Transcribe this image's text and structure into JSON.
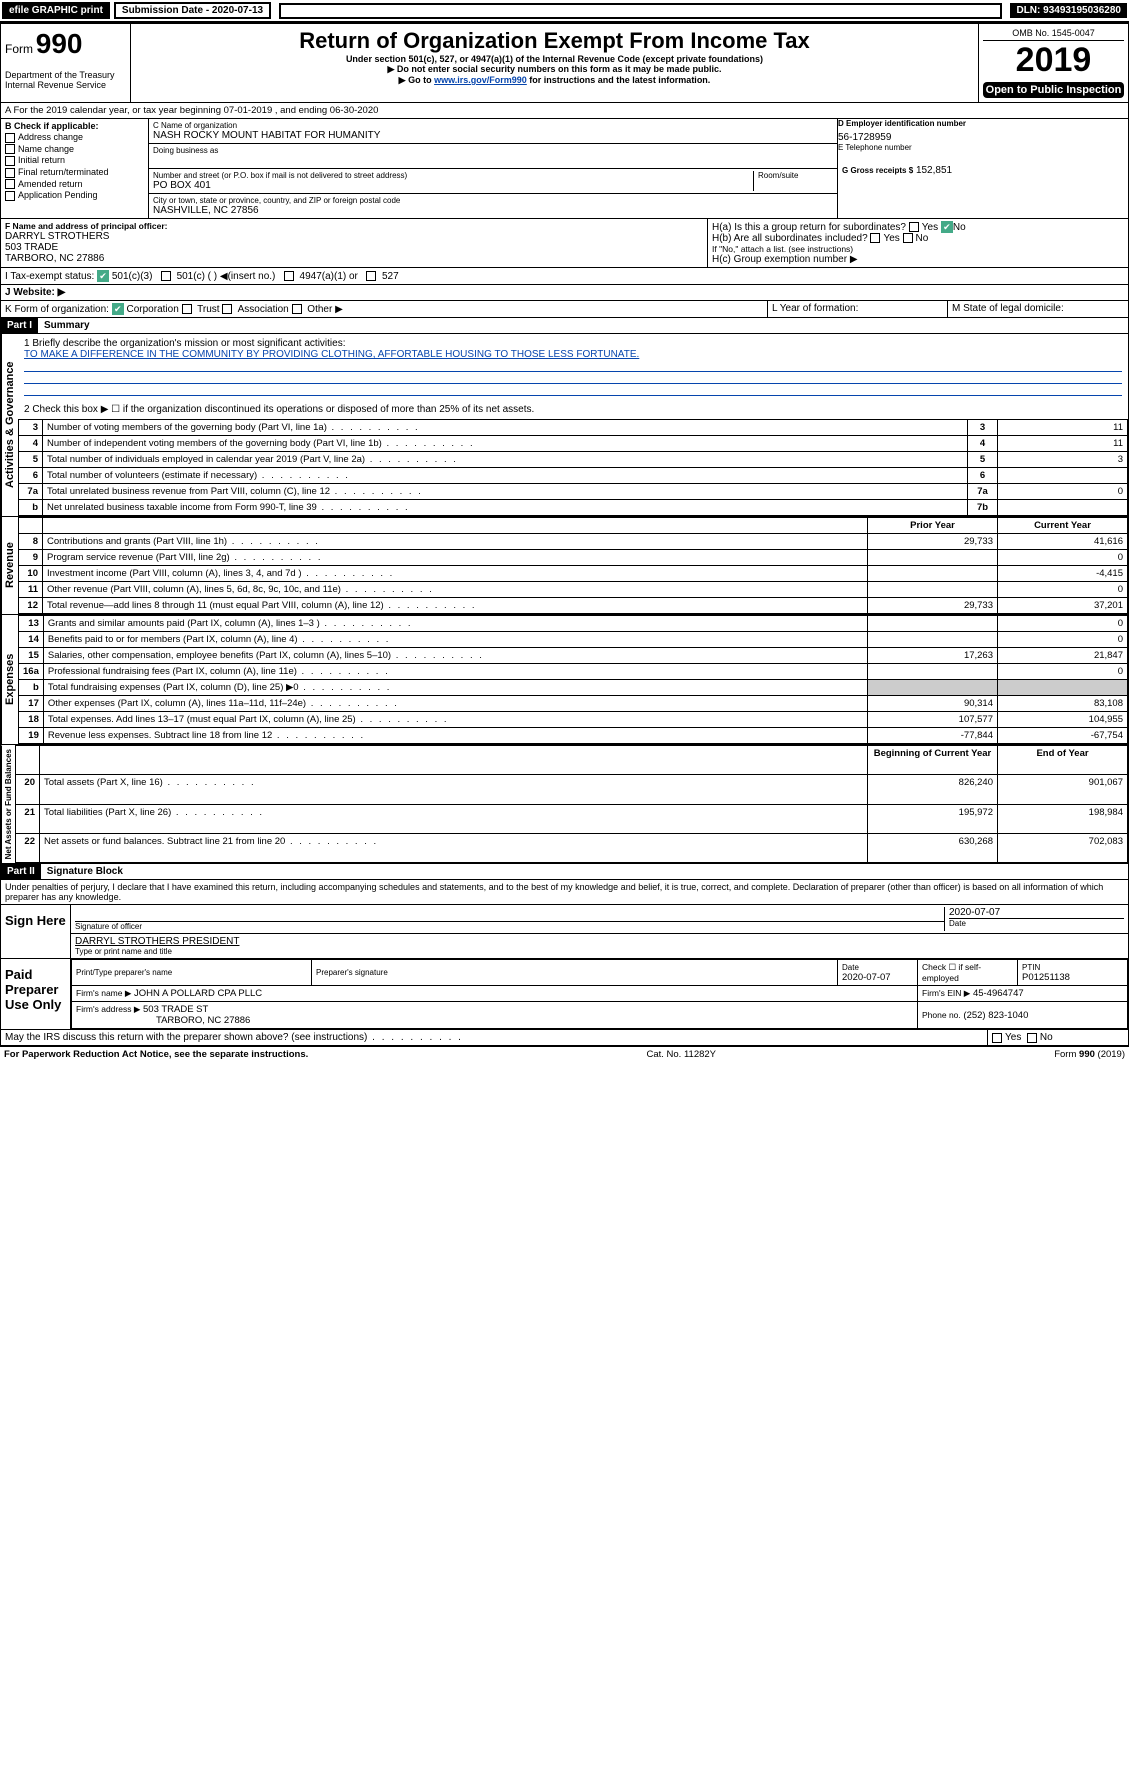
{
  "topbar": {
    "efile": "efile GRAPHIC print",
    "sub_label": "Submission Date - 2020-07-13",
    "dln": "DLN: 93493195036280"
  },
  "header": {
    "form_word": "Form",
    "form_no": "990",
    "dept": "Department of the Treasury",
    "irs": "Internal Revenue Service",
    "title": "Return of Organization Exempt From Income Tax",
    "subtitle": "Under section 501(c), 527, or 4947(a)(1) of the Internal Revenue Code (except private foundations)",
    "note1": "▶ Do not enter social security numbers on this form as it may be made public.",
    "note2_pre": "▶ Go to ",
    "note2_link": "www.irs.gov/Form990",
    "note2_post": " for instructions and the latest information.",
    "omb": "OMB No. 1545-0047",
    "year": "2019",
    "open": "Open to Public Inspection"
  },
  "sectionA": {
    "line": "A For the 2019 calendar year, or tax year beginning 07-01-2019   , and ending 06-30-2020"
  },
  "B": {
    "label": "B Check if applicable:",
    "opts": [
      "Address change",
      "Name change",
      "Initial return",
      "Final return/terminated",
      "Amended return",
      "Application Pending"
    ]
  },
  "C": {
    "name_label": "C Name of organization",
    "name": "NASH ROCKY MOUNT HABITAT FOR HUMANITY",
    "dba_label": "Doing business as",
    "addr_label": "Number and street (or P.O. box if mail is not delivered to street address)",
    "room_label": "Room/suite",
    "addr": "PO BOX 401",
    "city_label": "City or town, state or province, country, and ZIP or foreign postal code",
    "city": "NASHVILLE, NC  27856"
  },
  "D": {
    "label": "D Employer identification number",
    "value": "56-1728959"
  },
  "E": {
    "label": "E Telephone number",
    "value": ""
  },
  "G": {
    "label": "G Gross receipts $",
    "value": "152,851"
  },
  "F": {
    "label": "F Name and address of principal officer:",
    "name": "DARRYL STROTHERS",
    "addr1": "503 TRADE",
    "addr2": "TARBORO, NC  27886"
  },
  "H": {
    "a": "H(a)  Is this a group return for subordinates?",
    "a_ans": "No",
    "b": "H(b)  Are all subordinates included?",
    "b_note": "If \"No,\" attach a list. (see instructions)",
    "c": "H(c)  Group exemption number ▶"
  },
  "I": {
    "label": "I   Tax-exempt status:",
    "opts": [
      "501(c)(3)",
      "501(c) (  ) ◀(insert no.)",
      "4947(a)(1) or",
      "527"
    ]
  },
  "J": {
    "label": "J   Website: ▶"
  },
  "K": {
    "label": "K Form of organization:",
    "opts": [
      "Corporation",
      "Trust",
      "Association",
      "Other ▶"
    ]
  },
  "L": {
    "label": "L Year of formation:"
  },
  "M": {
    "label": "M State of legal domicile:"
  },
  "part1": {
    "hdr": "Part I",
    "title": "Summary",
    "l1_label": "1  Briefly describe the organization's mission or most significant activities:",
    "l1_text": "TO MAKE A DIFFERENCE IN THE COMMUNITY BY PROVIDING CLOTHING, AFFORTABLE HOUSING TO THOSE LESS FORTUNATE.",
    "l2": "2   Check this box ▶ ☐  if the organization discontinued its operations or disposed of more than 25% of its net assets.",
    "lines_gov": [
      {
        "n": "3",
        "t": "Number of voting members of the governing body (Part VI, line 1a)",
        "box": "3",
        "v": "11"
      },
      {
        "n": "4",
        "t": "Number of independent voting members of the governing body (Part VI, line 1b)",
        "box": "4",
        "v": "11"
      },
      {
        "n": "5",
        "t": "Total number of individuals employed in calendar year 2019 (Part V, line 2a)",
        "box": "5",
        "v": "3"
      },
      {
        "n": "6",
        "t": "Total number of volunteers (estimate if necessary)",
        "box": "6",
        "v": ""
      },
      {
        "n": "7a",
        "t": "Total unrelated business revenue from Part VIII, column (C), line 12",
        "box": "7a",
        "v": "0"
      },
      {
        "n": "b",
        "t": "Net unrelated business taxable income from Form 990-T, line 39",
        "box": "7b",
        "v": ""
      }
    ],
    "col_prior": "Prior Year",
    "col_curr": "Current Year",
    "rev": [
      {
        "n": "8",
        "t": "Contributions and grants (Part VIII, line 1h)",
        "p": "29,733",
        "c": "41,616"
      },
      {
        "n": "9",
        "t": "Program service revenue (Part VIII, line 2g)",
        "p": "",
        "c": "0"
      },
      {
        "n": "10",
        "t": "Investment income (Part VIII, column (A), lines 3, 4, and 7d )",
        "p": "",
        "c": "-4,415"
      },
      {
        "n": "11",
        "t": "Other revenue (Part VIII, column (A), lines 5, 6d, 8c, 9c, 10c, and 11e)",
        "p": "",
        "c": "0"
      },
      {
        "n": "12",
        "t": "Total revenue—add lines 8 through 11 (must equal Part VIII, column (A), line 12)",
        "p": "29,733",
        "c": "37,201"
      }
    ],
    "exp": [
      {
        "n": "13",
        "t": "Grants and similar amounts paid (Part IX, column (A), lines 1–3 )",
        "p": "",
        "c": "0"
      },
      {
        "n": "14",
        "t": "Benefits paid to or for members (Part IX, column (A), line 4)",
        "p": "",
        "c": "0"
      },
      {
        "n": "15",
        "t": "Salaries, other compensation, employee benefits (Part IX, column (A), lines 5–10)",
        "p": "17,263",
        "c": "21,847"
      },
      {
        "n": "16a",
        "t": "Professional fundraising fees (Part IX, column (A), line 11e)",
        "p": "",
        "c": "0"
      },
      {
        "n": "b",
        "t": "Total fundraising expenses (Part IX, column (D), line 25) ▶0",
        "p": "—",
        "c": "—"
      },
      {
        "n": "17",
        "t": "Other expenses (Part IX, column (A), lines 11a–11d, 11f–24e)",
        "p": "90,314",
        "c": "83,108"
      },
      {
        "n": "18",
        "t": "Total expenses. Add lines 13–17 (must equal Part IX, column (A), line 25)",
        "p": "107,577",
        "c": "104,955"
      },
      {
        "n": "19",
        "t": "Revenue less expenses. Subtract line 18 from line 12",
        "p": "-77,844",
        "c": "-67,754"
      }
    ],
    "col_begin": "Beginning of Current Year",
    "col_end": "End of Year",
    "net": [
      {
        "n": "20",
        "t": "Total assets (Part X, line 16)",
        "p": "826,240",
        "c": "901,067"
      },
      {
        "n": "21",
        "t": "Total liabilities (Part X, line 26)",
        "p": "195,972",
        "c": "198,984"
      },
      {
        "n": "22",
        "t": "Net assets or fund balances. Subtract line 21 from line 20",
        "p": "630,268",
        "c": "702,083"
      }
    ],
    "vert_gov": "Activities & Governance",
    "vert_rev": "Revenue",
    "vert_exp": "Expenses",
    "vert_net": "Net Assets or Fund Balances"
  },
  "part2": {
    "hdr": "Part II",
    "title": "Signature Block",
    "decl": "Under penalties of perjury, I declare that I have examined this return, including accompanying schedules and statements, and to the best of my knowledge and belief, it is true, correct, and complete. Declaration of preparer (other than officer) is based on all information of which preparer has any knowledge.",
    "sign_here": "Sign Here",
    "sig_officer": "Signature of officer",
    "sig_date": "2020-07-07",
    "sig_date_label": "Date",
    "officer_name": "DARRYL STROTHERS  PRESIDENT",
    "type_label": "Type or print name and title",
    "paid": "Paid Preparer Use Only",
    "prep_name_label": "Print/Type preparer's name",
    "prep_sig_label": "Preparer's signature",
    "date_label": "Date",
    "date_val": "2020-07-07",
    "check_label": "Check ☐ if self-employed",
    "ptin_label": "PTIN",
    "ptin": "P01251138",
    "firm_name_label": "Firm's name    ▶",
    "firm_name": "JOHN A POLLARD CPA PLLC",
    "firm_ein_label": "Firm's EIN ▶",
    "firm_ein": "45-4964747",
    "firm_addr_label": "Firm's address ▶",
    "firm_addr": "503 TRADE ST",
    "firm_city": "TARBORO, NC  27886",
    "phone_label": "Phone no.",
    "phone": "(252) 823-1040",
    "discuss": "May the IRS discuss this return with the preparer shown above? (see instructions)",
    "yes": "Yes",
    "no": "No"
  },
  "footer": {
    "left": "For Paperwork Reduction Act Notice, see the separate instructions.",
    "mid": "Cat. No. 11282Y",
    "right": "Form 990 (2019)"
  }
}
